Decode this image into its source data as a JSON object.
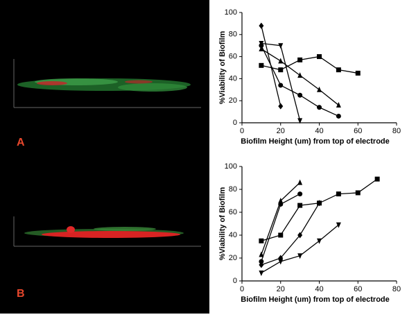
{
  "panel_labels": [
    "A",
    "B"
  ],
  "chart_data": [
    {
      "type": "line",
      "xlabel": "Biofilm Height (um) from top of electrode",
      "ylabel": "%Viability of Biofilm",
      "xlim": [
        0,
        80
      ],
      "xticks": [
        0,
        20,
        40,
        60,
        80
      ],
      "ylim": [
        0,
        100
      ],
      "yticks": [
        0,
        20,
        40,
        60,
        80,
        100
      ],
      "series": [
        {
          "color": "#000000",
          "marker": "square",
          "x": [
            10,
            20,
            30,
            40,
            50,
            60
          ],
          "values": [
            52,
            48,
            57,
            60,
            48,
            45
          ]
        },
        {
          "color": "#000000",
          "marker": "triangle",
          "x": [
            10,
            20,
            30,
            40,
            50
          ],
          "values": [
            67,
            56,
            43,
            30,
            16
          ]
        },
        {
          "color": "#000000",
          "marker": "circle",
          "x": [
            10,
            20,
            30,
            40,
            50
          ],
          "values": [
            70,
            34,
            25,
            14,
            6
          ]
        },
        {
          "color": "#000000",
          "marker": "diamond",
          "x": [
            10,
            20
          ],
          "values": [
            88,
            15
          ]
        },
        {
          "color": "#000000",
          "marker": "triangle-down",
          "x": [
            10,
            20,
            30
          ],
          "values": [
            72,
            70,
            2
          ]
        }
      ]
    },
    {
      "type": "line",
      "xlabel": "Biofilm Height (um) from top of electrode",
      "ylabel": "%Viability of Biofilm",
      "xlim": [
        0,
        80
      ],
      "xticks": [
        0,
        20,
        40,
        60,
        80
      ],
      "ylim": [
        0,
        100
      ],
      "yticks": [
        0,
        20,
        40,
        60,
        80,
        100
      ],
      "series": [
        {
          "color": "#000000",
          "marker": "square",
          "x": [
            10,
            20,
            30,
            40,
            50,
            60,
            70
          ],
          "values": [
            35,
            40,
            66,
            68,
            76,
            77,
            89
          ]
        },
        {
          "color": "#000000",
          "marker": "triangle",
          "x": [
            10,
            20,
            30
          ],
          "values": [
            23,
            70,
            86
          ]
        },
        {
          "color": "#000000",
          "marker": "circle",
          "x": [
            10,
            20,
            30
          ],
          "values": [
            17,
            67,
            76
          ]
        },
        {
          "color": "#000000",
          "marker": "diamond",
          "x": [
            10,
            20,
            30,
            40
          ],
          "values": [
            14,
            20,
            40,
            68
          ]
        },
        {
          "color": "#000000",
          "marker": "triangle-down",
          "x": [
            10,
            20,
            30,
            40,
            50
          ],
          "values": [
            7,
            17,
            22,
            35,
            49
          ]
        }
      ]
    }
  ]
}
